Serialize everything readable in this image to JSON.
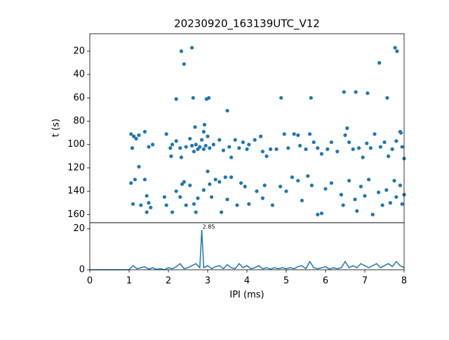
{
  "chart_data": [
    {
      "type": "scatter",
      "title": "20230920_163139UTC_V12",
      "y_label": "t (s)",
      "color": "#1f77b4",
      "xlim": [
        0,
        8
      ],
      "ylim": [
        5,
        167
      ],
      "invert_y": true,
      "yticks": [
        20,
        40,
        60,
        80,
        100,
        120,
        140,
        160
      ],
      "x": [
        2.33,
        2.4,
        2.6,
        7.77,
        7.82,
        7.37,
        2.2,
        2.63,
        2.97,
        3.03,
        3.5,
        4.87,
        5.63,
        6.47,
        6.77,
        7.07,
        7.57,
        2.68,
        2.92,
        2.9,
        6.55,
        7.92,
        1.05,
        1.08,
        1.12,
        1.18,
        1.25,
        1.4,
        1.5,
        1.6,
        1.95,
        2.05,
        2.07,
        2.1,
        2.2,
        2.3,
        2.33,
        2.45,
        2.55,
        2.6,
        2.65,
        2.7,
        2.75,
        2.8,
        2.85,
        2.9,
        2.95,
        3.0,
        3.05,
        3.15,
        3.3,
        3.4,
        3.55,
        3.6,
        3.7,
        3.8,
        3.9,
        4.0,
        4.05,
        4.2,
        4.35,
        4.4,
        4.5,
        4.6,
        4.75,
        4.95,
        5.05,
        5.2,
        5.3,
        5.35,
        5.5,
        5.6,
        5.7,
        5.8,
        5.9,
        6.05,
        6.15,
        6.3,
        6.5,
        6.6,
        6.7,
        6.85,
        6.95,
        7.05,
        7.15,
        7.25,
        7.4,
        7.5,
        7.6,
        7.7,
        7.8,
        7.9,
        7.95,
        8.0,
        1.05,
        1.1,
        1.15,
        1.25,
        1.3,
        1.4,
        1.45,
        1.45,
        1.5,
        1.55,
        1.9,
        1.95,
        2.1,
        2.2,
        2.3,
        2.35,
        2.4,
        2.45,
        2.55,
        2.65,
        2.7,
        2.75,
        2.9,
        3.0,
        3.05,
        3.1,
        3.2,
        3.3,
        3.35,
        3.45,
        3.5,
        3.6,
        3.75,
        3.85,
        3.95,
        4.05,
        4.25,
        4.4,
        4.45,
        4.65,
        4.85,
        5.0,
        5.15,
        5.3,
        5.4,
        5.55,
        5.65,
        5.8,
        5.9,
        6.0,
        6.15,
        6.4,
        6.45,
        6.6,
        6.75,
        6.8,
        6.9,
        7.0,
        7.1,
        7.2,
        7.35,
        7.45,
        7.55,
        7.65,
        7.75,
        7.8,
        7.9,
        7.95,
        8.0
      ],
      "values": [
        20,
        31,
        17,
        17,
        20,
        30,
        61,
        60,
        61,
        60,
        71,
        60,
        60,
        55,
        55,
        56,
        60,
        85,
        83,
        89,
        86,
        90,
        91,
        103,
        93,
        95,
        92,
        89,
        102,
        100,
        91,
        103,
        110,
        100,
        97,
        103,
        111,
        102,
        95,
        101,
        106,
        100,
        104,
        102,
        96,
        104,
        101,
        93,
        103,
        100,
        96,
        105,
        102,
        111,
        96,
        103,
        98,
        104,
        100,
        96,
        93,
        106,
        110,
        104,
        104,
        91,
        103,
        91,
        92,
        101,
        104,
        91,
        98,
        103,
        108,
        104,
        98,
        106,
        92,
        98,
        104,
        103,
        111,
        99,
        103,
        91,
        102,
        98,
        110,
        104,
        97,
        89,
        102,
        112,
        133,
        151,
        130,
        119,
        152,
        130,
        144,
        158,
        150,
        154,
        145,
        152,
        158,
        140,
        145,
        134,
        132,
        152,
        135,
        151,
        158,
        146,
        139,
        123,
        134,
        145,
        130,
        132,
        158,
        128,
        147,
        128,
        152,
        133,
        136,
        151,
        140,
        146,
        135,
        152,
        136,
        140,
        128,
        131,
        148,
        127,
        135,
        160,
        159,
        138,
        133,
        143,
        152,
        131,
        147,
        157,
        136,
        144,
        130,
        160,
        141,
        152,
        139,
        150,
        131,
        145,
        135,
        151,
        143
      ]
    },
    {
      "type": "line",
      "x_label": "IPI (ms)",
      "color": "#1f77b4",
      "xlim": [
        0,
        8
      ],
      "ylim": [
        0,
        23
      ],
      "xticks": [
        0,
        1,
        2,
        3,
        4,
        5,
        6,
        7,
        8
      ],
      "yticks": [
        0,
        20
      ],
      "annotation": {
        "text": "2.85",
        "x": 2.85,
        "y": 19.5
      },
      "x": [
        0,
        0.5,
        1.0,
        1.1,
        1.2,
        1.3,
        1.4,
        1.5,
        1.6,
        1.7,
        1.8,
        1.9,
        2.0,
        2.1,
        2.2,
        2.3,
        2.4,
        2.5,
        2.6,
        2.7,
        2.8,
        2.85,
        2.9,
        3.0,
        3.1,
        3.2,
        3.3,
        3.4,
        3.5,
        3.6,
        3.7,
        3.8,
        3.9,
        4.0,
        4.1,
        4.2,
        4.3,
        4.4,
        4.5,
        4.6,
        4.7,
        4.8,
        4.9,
        5.0,
        5.1,
        5.2,
        5.3,
        5.4,
        5.5,
        5.6,
        5.7,
        5.8,
        5.9,
        6.0,
        6.1,
        6.2,
        6.3,
        6.4,
        6.5,
        6.6,
        6.7,
        6.8,
        6.9,
        7.0,
        7.1,
        7.2,
        7.3,
        7.4,
        7.5,
        7.6,
        7.7,
        7.8,
        7.9,
        8.0
      ],
      "values": [
        0,
        0,
        0,
        2,
        0.5,
        1,
        1.5,
        0.3,
        1,
        0.2,
        0.5,
        0,
        1,
        0.5,
        1.5,
        3,
        0.5,
        1,
        2,
        3,
        1,
        19.5,
        1,
        2,
        0.5,
        1.5,
        2,
        0.5,
        2.5,
        1,
        0.5,
        3,
        1,
        2,
        0.5,
        1,
        2,
        0.5,
        1,
        0.3,
        1,
        0.5,
        1,
        0.5,
        1,
        0.5,
        1.5,
        2,
        0.5,
        4,
        1,
        0.5,
        1,
        1.5,
        0.3,
        1,
        0.5,
        1,
        4,
        1,
        2,
        1,
        3,
        2,
        1,
        2,
        3,
        1,
        2,
        3,
        1.5,
        4,
        2,
        1
      ]
    }
  ]
}
